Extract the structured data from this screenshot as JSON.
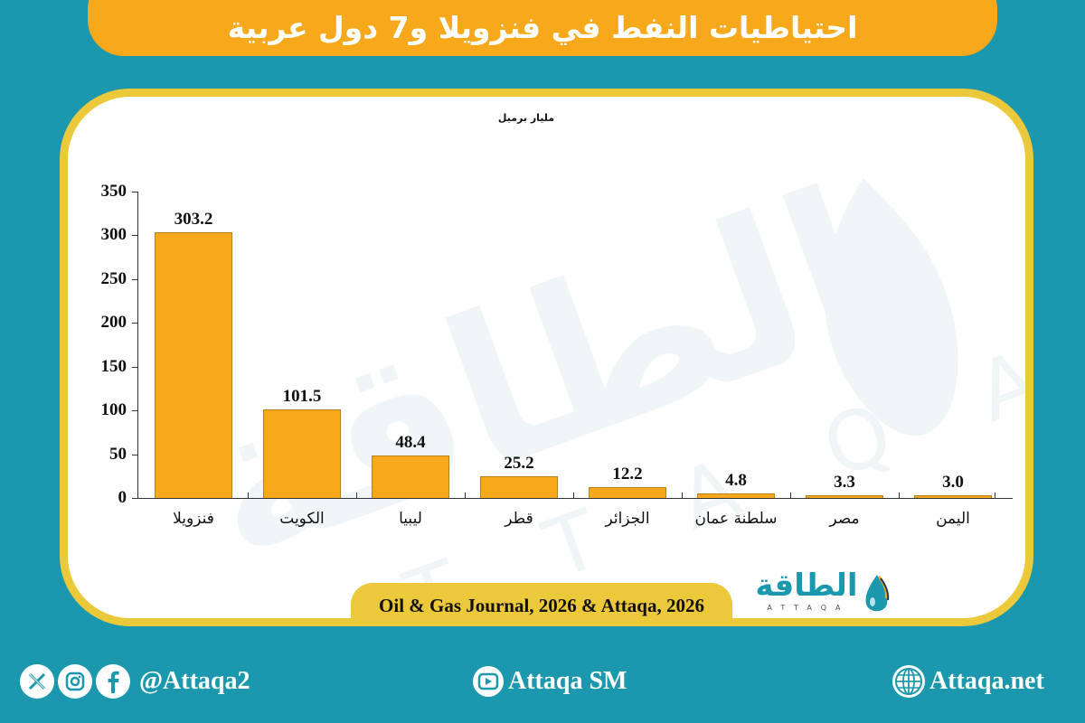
{
  "header": {
    "title": "احتياطيات النفط في فنزويلا و7 دول عربية"
  },
  "chart_data": {
    "type": "bar",
    "title": "احتياطيات النفط في فنزويلا و7 دول عربية",
    "ylabel": "مليار برميل",
    "xlabel": "",
    "categories": [
      "فنزويلا",
      "الكويت",
      "ليبيا",
      "قطر",
      "الجزائر",
      "سلطنة عمان",
      "مصر",
      "اليمن"
    ],
    "values": [
      303.2,
      101.5,
      48.4,
      25.2,
      12.2,
      4.8,
      3.3,
      3.0
    ],
    "value_labels": [
      "303.2",
      "101.5",
      "48.4",
      "25.2",
      "12.2",
      "4.8",
      "3.3",
      "3.0"
    ],
    "ylim": [
      0,
      350
    ],
    "yticks": [
      "0",
      "50",
      "100",
      "150",
      "200",
      "250",
      "300",
      "350"
    ],
    "grid": false,
    "legend": null,
    "bar_color": "#f7a81b"
  },
  "source": {
    "text": "Oil & Gas Journal, 2026 & Attaqa, 2026"
  },
  "logo": {
    "arabic": "الطاقة",
    "english": "ATTAQA"
  },
  "footer": {
    "social_handle": "@Attaqa2",
    "youtube": "Attaqa SM",
    "website": "Attaqa.net",
    "icons": [
      "x-icon",
      "instagram-icon",
      "facebook-icon",
      "youtube-icon",
      "globe-icon"
    ]
  },
  "colors": {
    "background": "#1b98ae",
    "title_bar": "#f7a81b",
    "card_border": "#ebc93a",
    "bar": "#f7a81b",
    "logo_text": "#1b98ae"
  }
}
